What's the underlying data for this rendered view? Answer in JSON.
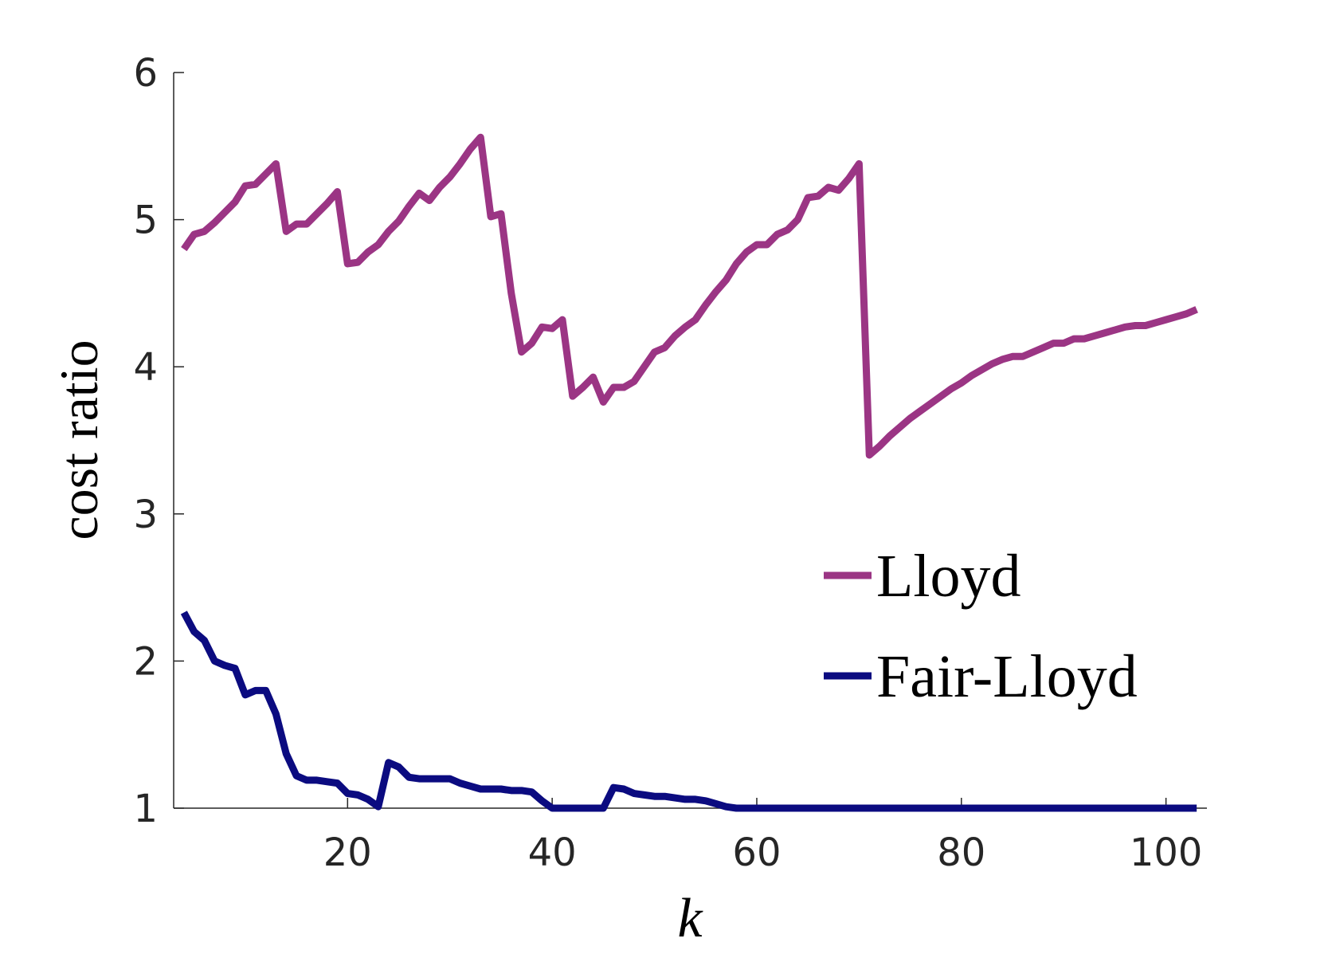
{
  "chart_data": {
    "type": "line",
    "x_label": "k",
    "y_label": "cost ratio",
    "x": [
      4,
      5,
      6,
      7,
      8,
      9,
      10,
      11,
      12,
      13,
      14,
      15,
      16,
      17,
      18,
      19,
      20,
      21,
      22,
      23,
      24,
      25,
      26,
      27,
      28,
      29,
      30,
      31,
      32,
      33,
      34,
      35,
      36,
      37,
      38,
      39,
      40,
      41,
      42,
      43,
      44,
      45,
      46,
      47,
      48,
      49,
      50,
      51,
      52,
      53,
      54,
      55,
      56,
      57,
      58,
      59,
      60,
      61,
      62,
      63,
      64,
      65,
      66,
      67,
      68,
      69,
      70,
      71,
      72,
      73,
      74,
      75,
      76,
      77,
      78,
      79,
      80,
      81,
      82,
      83,
      84,
      85,
      86,
      87,
      88,
      89,
      90,
      91,
      92,
      93,
      94,
      95,
      96,
      97,
      98,
      99,
      100,
      101,
      102,
      103
    ],
    "series": [
      {
        "name": "Lloyd",
        "color": "#9b3584",
        "values": [
          4.8,
          4.9,
          4.92,
          4.98,
          5.05,
          5.12,
          5.23,
          5.24,
          5.31,
          5.38,
          4.92,
          4.97,
          4.97,
          5.04,
          5.11,
          5.19,
          4.7,
          4.71,
          4.78,
          4.83,
          4.92,
          4.99,
          5.09,
          5.18,
          5.13,
          5.22,
          5.29,
          5.38,
          5.48,
          5.56,
          5.02,
          5.04,
          4.5,
          4.1,
          4.16,
          4.27,
          4.26,
          4.32,
          3.8,
          3.86,
          3.93,
          3.76,
          3.86,
          3.86,
          3.9,
          4.0,
          4.1,
          4.13,
          4.21,
          4.27,
          4.32,
          4.42,
          4.51,
          4.59,
          4.7,
          4.78,
          4.83,
          4.83,
          4.9,
          4.93,
          5.0,
          5.15,
          5.16,
          5.22,
          5.2,
          5.28,
          5.38,
          3.4,
          3.46,
          3.53,
          3.59,
          3.65,
          3.7,
          3.75,
          3.8,
          3.85,
          3.89,
          3.94,
          3.98,
          4.02,
          4.05,
          4.07,
          4.07,
          4.1,
          4.13,
          4.16,
          4.16,
          4.19,
          4.19,
          4.21,
          4.23,
          4.25,
          4.27,
          4.28,
          4.28,
          4.3,
          4.32,
          4.34,
          4.36,
          4.39
        ]
      },
      {
        "name": "Fair-Lloyd",
        "color": "#0b0b80",
        "values": [
          2.33,
          2.2,
          2.14,
          2.0,
          1.97,
          1.95,
          1.77,
          1.8,
          1.8,
          1.64,
          1.37,
          1.22,
          1.19,
          1.19,
          1.18,
          1.17,
          1.1,
          1.09,
          1.06,
          1.01,
          1.31,
          1.28,
          1.21,
          1.2,
          1.2,
          1.2,
          1.2,
          1.17,
          1.15,
          1.13,
          1.13,
          1.13,
          1.12,
          1.12,
          1.11,
          1.05,
          1,
          1,
          1,
          1,
          1,
          1,
          1.14,
          1.13,
          1.1,
          1.09,
          1.08,
          1.08,
          1.07,
          1.06,
          1.06,
          1.05,
          1.03,
          1.01,
          1,
          1,
          1,
          1,
          1,
          1,
          1,
          1,
          1,
          1,
          1,
          1,
          1,
          1,
          1,
          1,
          1,
          1,
          1,
          1,
          1,
          1,
          1,
          1,
          1,
          1,
          1,
          1,
          1,
          1,
          1,
          1,
          1,
          1,
          1,
          1,
          1,
          1,
          1,
          1,
          1,
          1,
          1,
          1,
          1,
          1
        ]
      }
    ],
    "xlim": [
      3,
      104
    ],
    "ylim": [
      1,
      6
    ],
    "xticks": [
      20,
      40,
      60,
      80,
      100
    ],
    "yticks": [
      1,
      2,
      3,
      4,
      5,
      6
    ],
    "legend": "right"
  }
}
